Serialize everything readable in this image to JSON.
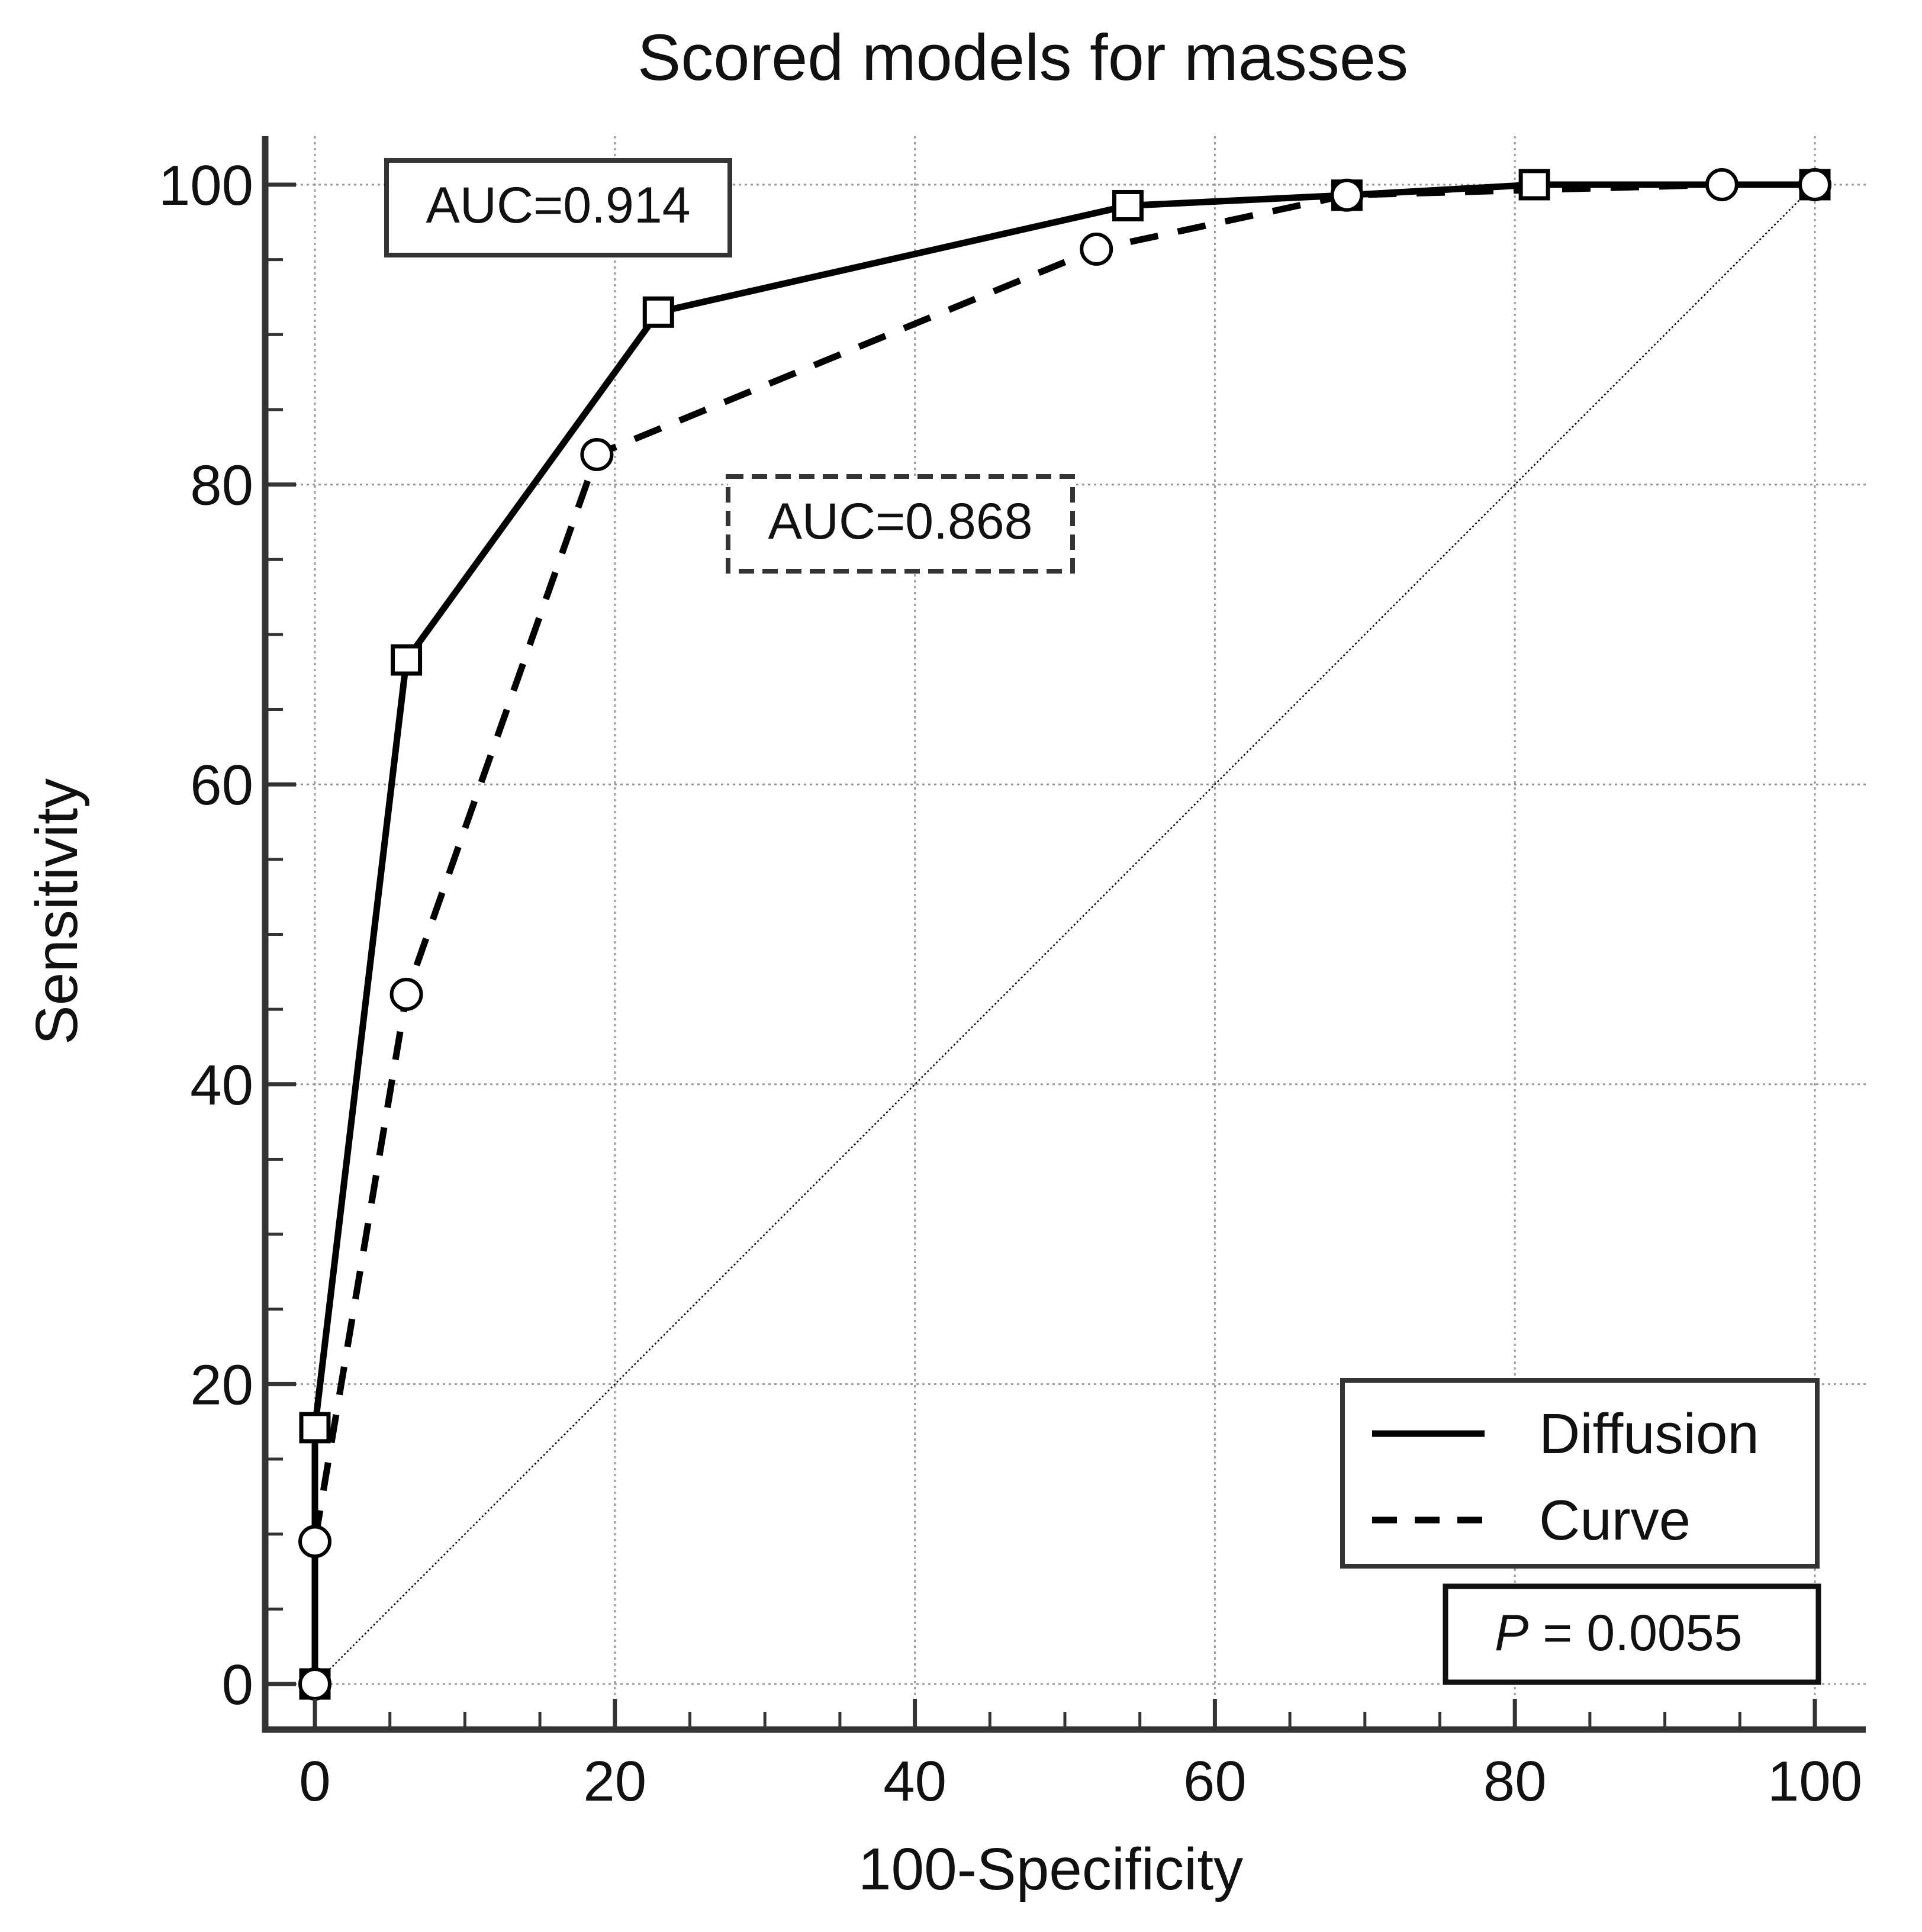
{
  "chart_data": {
    "type": "line",
    "title": "Scored models for masses",
    "xlabel": "100-Specificity",
    "ylabel": "Sensitivity",
    "xlim": [
      0,
      100
    ],
    "ylim": [
      0,
      100
    ],
    "x_ticks": [
      0,
      20,
      40,
      60,
      80,
      100
    ],
    "y_ticks": [
      0,
      20,
      40,
      60,
      80,
      100
    ],
    "x_tick_labels": [
      "0",
      "20",
      "40",
      "60",
      "80",
      "100"
    ],
    "y_tick_labels": [
      "0",
      "20",
      "40",
      "60",
      "80",
      "100"
    ],
    "x_minor_step": 5,
    "y_minor_step": 5,
    "grid": true,
    "legend_position": "lower-right",
    "series": [
      {
        "name": "Diffusion",
        "line_style": "solid",
        "marker": "square",
        "x": [
          0,
          0,
          6.1,
          22.9,
          54.2,
          68.8,
          81.3,
          100
        ],
        "y": [
          0,
          17.1,
          68.3,
          91.5,
          98.6,
          99.3,
          100,
          100
        ]
      },
      {
        "name": "Curve",
        "line_style": "dashed",
        "marker": "circle",
        "x": [
          0,
          0,
          6.1,
          18.8,
          52.1,
          68.8,
          93.8,
          100
        ],
        "y": [
          0,
          9.5,
          46.0,
          82.0,
          95.7,
          99.3,
          100,
          100
        ]
      },
      {
        "line_style": "dotted",
        "marker": "none",
        "x": [
          0,
          100
        ],
        "y": [
          0,
          100
        ]
      }
    ],
    "annotations": {
      "auc_diffusion": "AUC=0.914",
      "auc_curve": "AUC=0.868",
      "p_label": "P",
      "p_value": " = 0.0055"
    }
  },
  "colors": {
    "line": "#000000",
    "axis": "#333333",
    "grid": "#9a9a9a",
    "box_border": "#333333",
    "marker_fill": "#ffffff"
  }
}
